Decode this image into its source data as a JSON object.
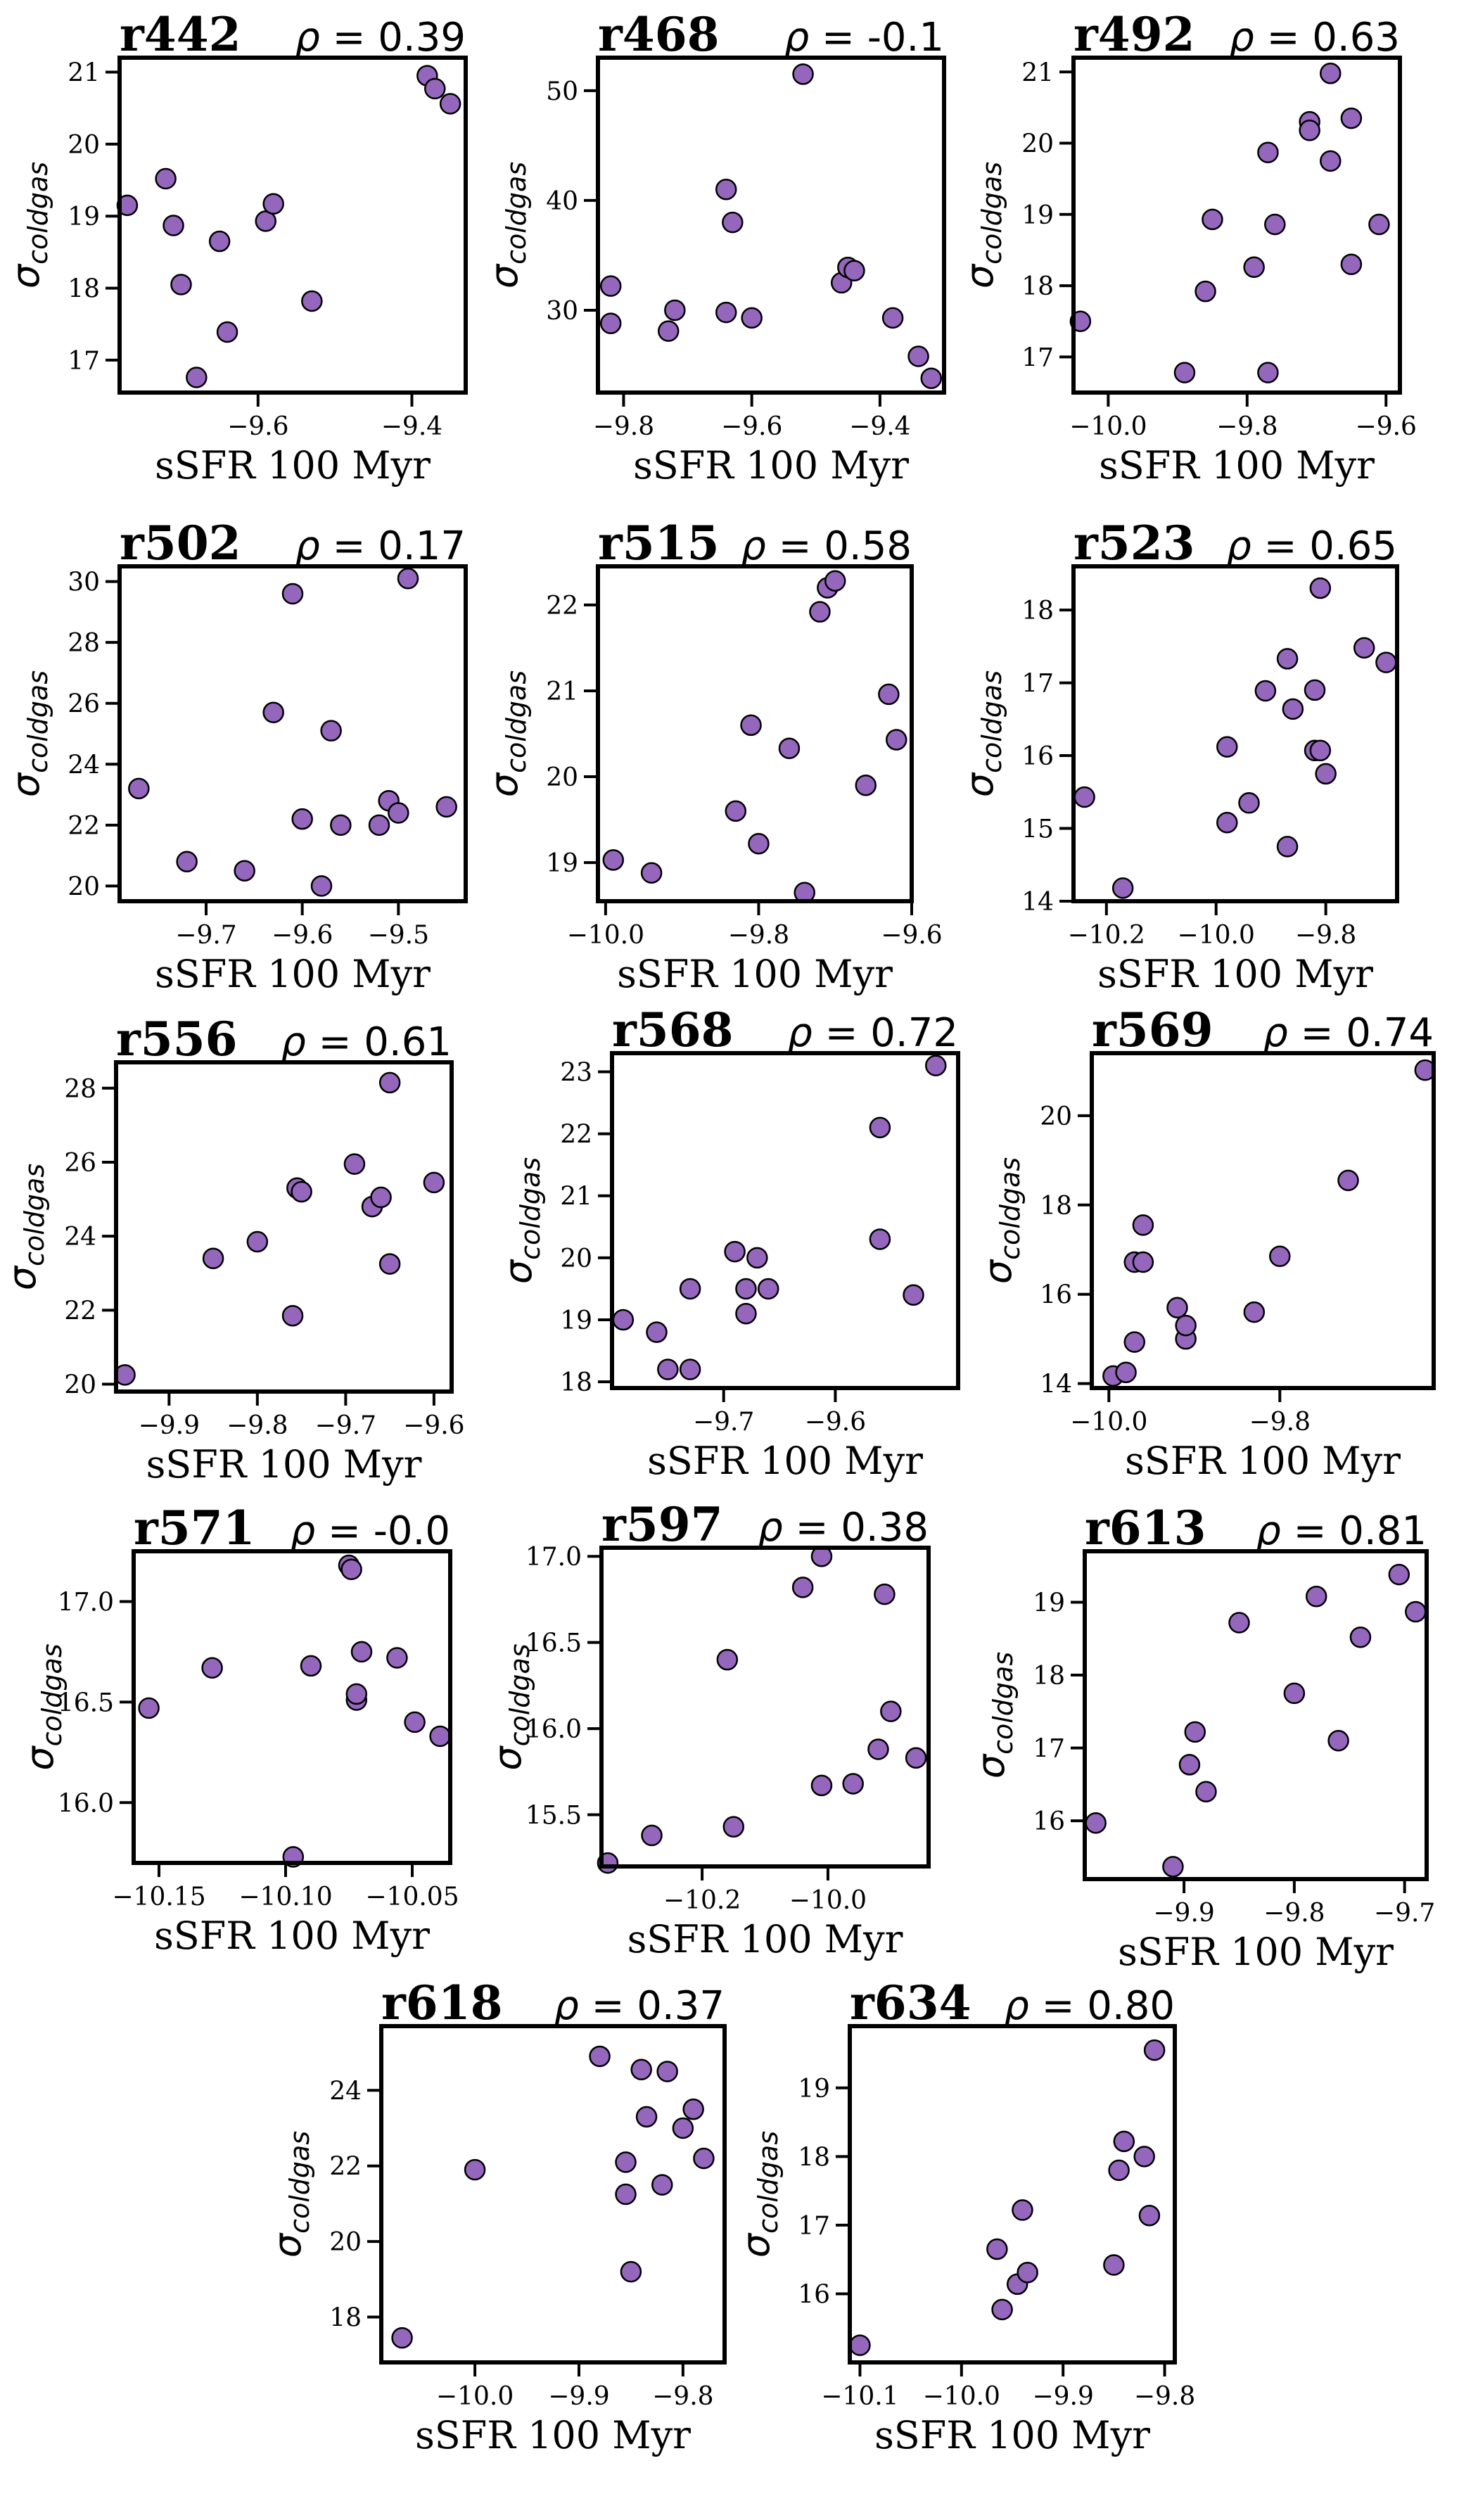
{
  "figure": {
    "marker_color": "#9467bd",
    "marker_edge": "#000000",
    "rho_symbol": "ρ",
    "x_label": "sSFR 100 Myr",
    "y_label_symbol": "σ",
    "y_label_subscript": "coldgas"
  },
  "chart_data": [
    {
      "type": "scatter",
      "id": "r442",
      "rho": "= 0.39",
      "xlabel": "sSFR 100 Myr",
      "ylabel": "σ_coldgas",
      "xlim": [
        -9.78,
        -9.33
      ],
      "ylim": [
        16.55,
        21.2
      ],
      "xticks": [
        -9.6,
        -9.4
      ],
      "yticks": [
        17,
        18,
        19,
        20,
        21
      ],
      "xprec": 1,
      "yprec": 0,
      "x": [
        -9.77,
        -9.72,
        -9.71,
        -9.7,
        -9.68,
        -9.65,
        -9.64,
        -9.59,
        -9.58,
        -9.53,
        -9.38,
        -9.37,
        -9.35
      ],
      "y": [
        19.15,
        19.52,
        18.87,
        18.05,
        16.76,
        18.65,
        17.39,
        18.93,
        19.17,
        17.82,
        20.95,
        20.77,
        20.56
      ]
    },
    {
      "type": "scatter",
      "id": "r468",
      "rho": "= -0.1",
      "xlabel": "sSFR 100 Myr",
      "ylabel": "σ_coldgas",
      "xlim": [
        -9.84,
        -9.3
      ],
      "ylim": [
        22.5,
        53
      ],
      "xticks": [
        -9.8,
        -9.6,
        -9.4
      ],
      "yticks": [
        30,
        40,
        50
      ],
      "xprec": 1,
      "yprec": 0,
      "x": [
        -9.82,
        -9.82,
        -9.73,
        -9.72,
        -9.64,
        -9.64,
        -9.63,
        -9.6,
        -9.52,
        -9.46,
        -9.45,
        -9.44,
        -9.38,
        -9.34,
        -9.32
      ],
      "y": [
        32.2,
        28.8,
        28.1,
        30.0,
        41.0,
        29.8,
        38.0,
        29.3,
        51.5,
        32.5,
        33.9,
        33.6,
        29.3,
        25.8,
        23.8
      ]
    },
    {
      "type": "scatter",
      "id": "r492",
      "rho": "= 0.63",
      "xlabel": "sSFR 100 Myr",
      "ylabel": "σ_coldgas",
      "xlim": [
        -10.05,
        -9.58
      ],
      "ylim": [
        16.5,
        21.2
      ],
      "xticks": [
        -10.0,
        -9.8,
        -9.6
      ],
      "yticks": [
        17,
        18,
        19,
        20,
        21
      ],
      "xprec": 1,
      "yprec": 0,
      "x": [
        -10.04,
        -9.89,
        -9.86,
        -9.85,
        -9.79,
        -9.77,
        -9.77,
        -9.76,
        -9.71,
        -9.71,
        -9.68,
        -9.68,
        -9.65,
        -9.65,
        -9.61
      ],
      "y": [
        17.5,
        16.78,
        17.92,
        18.93,
        18.26,
        16.78,
        19.87,
        18.86,
        20.3,
        20.18,
        20.98,
        19.75,
        20.35,
        18.3,
        18.86
      ]
    },
    {
      "type": "scatter",
      "id": "r502",
      "rho": "= 0.17",
      "xlabel": "sSFR 100 Myr",
      "ylabel": "σ_coldgas",
      "xlim": [
        -9.79,
        -9.43
      ],
      "ylim": [
        19.5,
        30.5
      ],
      "xticks": [
        -9.7,
        -9.6,
        -9.5
      ],
      "yticks": [
        20,
        22,
        24,
        26,
        28,
        30
      ],
      "xprec": 1,
      "yprec": 0,
      "x": [
        -9.77,
        -9.72,
        -9.66,
        -9.63,
        -9.61,
        -9.6,
        -9.58,
        -9.57,
        -9.56,
        -9.52,
        -9.51,
        -9.5,
        -9.49,
        -9.45
      ],
      "y": [
        23.2,
        20.8,
        20.5,
        25.7,
        29.6,
        22.2,
        20.0,
        25.1,
        22.0,
        22.0,
        22.8,
        22.4,
        30.1,
        22.6
      ]
    },
    {
      "type": "scatter",
      "id": "r515",
      "rho": "= 0.58",
      "xlabel": "sSFR 100 Myr",
      "ylabel": "σ_coldgas",
      "xlim": [
        -10.01,
        -9.6
      ],
      "ylim": [
        18.55,
        22.45
      ],
      "xticks": [
        -10.0,
        -9.8,
        -9.6
      ],
      "yticks": [
        19,
        20,
        21,
        22
      ],
      "xprec": 1,
      "yprec": 0,
      "x": [
        -9.99,
        -9.94,
        -9.83,
        -9.81,
        -9.8,
        -9.76,
        -9.74,
        -9.72,
        -9.71,
        -9.7,
        -9.66,
        -9.63,
        -9.62
      ],
      "y": [
        19.03,
        18.88,
        19.6,
        20.6,
        19.22,
        20.33,
        18.65,
        21.92,
        22.2,
        22.28,
        19.9,
        20.96,
        20.43
      ]
    },
    {
      "type": "scatter",
      "id": "r523",
      "rho": "= 0.65",
      "xlabel": "sSFR 100 Myr",
      "ylabel": "σ_coldgas",
      "xlim": [
        -10.26,
        -9.67
      ],
      "ylim": [
        14.0,
        18.6
      ],
      "xticks": [
        -10.2,
        -10.0,
        -9.8
      ],
      "yticks": [
        14,
        15,
        16,
        17,
        18
      ],
      "xprec": 1,
      "yprec": 0,
      "x": [
        -10.24,
        -10.17,
        -9.98,
        -9.98,
        -9.94,
        -9.91,
        -9.87,
        -9.87,
        -9.86,
        -9.82,
        -9.82,
        -9.81,
        -9.81,
        -9.8,
        -9.73,
        -9.69
      ],
      "y": [
        15.43,
        14.18,
        16.12,
        15.08,
        15.35,
        16.89,
        14.75,
        17.33,
        16.64,
        16.07,
        16.9,
        18.3,
        16.07,
        15.75,
        17.48,
        17.28
      ]
    },
    {
      "type": "scatter",
      "id": "r556",
      "rho": "= 0.61",
      "xlabel": "sSFR 100 Myr",
      "ylabel": "σ_coldgas",
      "xlim": [
        -9.96,
        -9.58
      ],
      "ylim": [
        19.8,
        28.7
      ],
      "xticks": [
        -9.9,
        -9.8,
        -9.7,
        -9.6
      ],
      "yticks": [
        20,
        22,
        24,
        26,
        28
      ],
      "xprec": 1,
      "yprec": 0,
      "x": [
        -9.95,
        -9.85,
        -9.8,
        -9.76,
        -9.755,
        -9.75,
        -9.69,
        -9.67,
        -9.66,
        -9.65,
        -9.65,
        -9.6
      ],
      "y": [
        20.25,
        23.4,
        23.85,
        21.85,
        25.3,
        25.2,
        25.95,
        24.8,
        25.05,
        23.25,
        28.15,
        25.45
      ]
    },
    {
      "type": "scatter",
      "id": "r568",
      "rho": "= 0.72",
      "xlabel": "sSFR 100 Myr",
      "ylabel": "σ_coldgas",
      "xlim": [
        -9.8,
        -9.49
      ],
      "ylim": [
        17.9,
        23.3
      ],
      "xticks": [
        -9.7,
        -9.6
      ],
      "yticks": [
        18,
        19,
        20,
        21,
        22,
        23
      ],
      "xprec": 1,
      "yprec": 0,
      "x": [
        -9.79,
        -9.76,
        -9.75,
        -9.73,
        -9.73,
        -9.69,
        -9.68,
        -9.68,
        -9.67,
        -9.66,
        -9.56,
        -9.56,
        -9.53,
        -9.51
      ],
      "y": [
        19.0,
        18.8,
        18.2,
        19.5,
        18.2,
        20.1,
        19.5,
        19.1,
        20.0,
        19.5,
        20.3,
        22.1,
        19.4,
        23.1
      ]
    },
    {
      "type": "scatter",
      "id": "r569",
      "rho": "= 0.74",
      "xlabel": "sSFR 100 Myr",
      "ylabel": "σ_coldgas",
      "xlim": [
        -10.02,
        -9.62
      ],
      "ylim": [
        13.9,
        21.4
      ],
      "xticks": [
        -10.0,
        -9.8
      ],
      "yticks": [
        14,
        16,
        18,
        20
      ],
      "xprec": 1,
      "yprec": 0,
      "x": [
        -9.995,
        -9.98,
        -9.97,
        -9.97,
        -9.96,
        -9.96,
        -9.92,
        -9.91,
        -9.91,
        -9.83,
        -9.8,
        -9.72,
        -9.63
      ],
      "y": [
        14.17,
        14.25,
        14.93,
        16.72,
        17.55,
        16.72,
        15.7,
        15.0,
        15.3,
        15.6,
        16.85,
        18.55,
        21.02
      ]
    },
    {
      "type": "scatter",
      "id": "r571",
      "rho": "= -0.0",
      "xlabel": "sSFR 100 Myr",
      "ylabel": "σ_coldgas",
      "xlim": [
        -10.16,
        -10.035
      ],
      "ylim": [
        15.7,
        17.25
      ],
      "xticks": [
        -10.15,
        -10.1,
        -10.05
      ],
      "yticks": [
        16.0,
        16.5,
        17.0
      ],
      "xprec": 2,
      "yprec": 1,
      "x": [
        -10.154,
        -10.129,
        -10.097,
        -10.09,
        -10.075,
        -10.074,
        -10.072,
        -10.072,
        -10.07,
        -10.056,
        -10.049,
        -10.039
      ],
      "y": [
        16.47,
        16.67,
        15.73,
        16.68,
        17.18,
        17.16,
        16.51,
        16.54,
        16.75,
        16.72,
        16.4,
        16.33
      ]
    },
    {
      "type": "scatter",
      "id": "r597",
      "rho": "= 0.38",
      "xlabel": "sSFR 100 Myr",
      "ylabel": "σ_coldgas",
      "xlim": [
        -10.36,
        -9.84
      ],
      "ylim": [
        15.2,
        17.05
      ],
      "xticks": [
        -10.2,
        -10.0
      ],
      "yticks": [
        15.5,
        16.0,
        16.5,
        17.0
      ],
      "xprec": 1,
      "yprec": 1,
      "x": [
        -10.35,
        -10.28,
        -10.16,
        -10.15,
        -10.04,
        -10.01,
        -10.01,
        -9.96,
        -9.92,
        -9.91,
        -9.9,
        -9.86
      ],
      "y": [
        15.22,
        15.38,
        16.4,
        15.43,
        16.82,
        17.0,
        15.67,
        15.68,
        15.88,
        16.78,
        16.1,
        15.83
      ]
    },
    {
      "type": "scatter",
      "id": "r613",
      "rho": "= 0.81",
      "xlabel": "sSFR 100 Myr",
      "ylabel": "σ_coldgas",
      "xlim": [
        -9.99,
        -9.68
      ],
      "ylim": [
        15.2,
        19.7
      ],
      "xticks": [
        -9.9,
        -9.8,
        -9.7
      ],
      "yticks": [
        16,
        17,
        18,
        19
      ],
      "xprec": 1,
      "yprec": 0,
      "x": [
        -9.98,
        -9.91,
        -9.895,
        -9.89,
        -9.88,
        -9.85,
        -9.8,
        -9.78,
        -9.76,
        -9.74,
        -9.705,
        -9.69
      ],
      "y": [
        15.97,
        15.37,
        16.77,
        17.22,
        16.4,
        18.72,
        17.75,
        19.08,
        17.1,
        18.52,
        19.38,
        18.87
      ]
    },
    {
      "type": "scatter",
      "id": "r618",
      "rho": "= 0.37",
      "xlabel": "sSFR 100 Myr",
      "ylabel": "σ_coldgas",
      "xlim": [
        -10.09,
        -9.76
      ],
      "ylim": [
        16.8,
        25.7
      ],
      "xticks": [
        -10.0,
        -9.9,
        -9.8
      ],
      "yticks": [
        18,
        20,
        22,
        24
      ],
      "xprec": 1,
      "yprec": 0,
      "x": [
        -10.07,
        -10.0,
        -9.88,
        -9.855,
        -9.855,
        -9.85,
        -9.84,
        -9.835,
        -9.82,
        -9.815,
        -9.8,
        -9.79,
        -9.78
      ],
      "y": [
        17.45,
        21.9,
        24.9,
        21.25,
        22.1,
        19.2,
        24.55,
        23.3,
        21.5,
        24.5,
        23.0,
        23.5,
        22.2
      ]
    },
    {
      "type": "scatter",
      "id": "r634",
      "rho": "= 0.80",
      "xlabel": "sSFR 100 Myr",
      "ylabel": "σ_coldgas",
      "xlim": [
        -10.11,
        -9.79
      ],
      "ylim": [
        15.0,
        19.9
      ],
      "xticks": [
        -10.1,
        -10.0,
        -9.9,
        -9.8
      ],
      "yticks": [
        16,
        17,
        18,
        19
      ],
      "xprec": 1,
      "yprec": 0,
      "x": [
        -10.1,
        -9.965,
        -9.96,
        -9.945,
        -9.94,
        -9.935,
        -9.85,
        -9.845,
        -9.84,
        -9.82,
        -9.815,
        -9.81
      ],
      "y": [
        15.25,
        16.65,
        15.77,
        16.14,
        17.22,
        16.31,
        16.42,
        17.8,
        18.22,
        18.0,
        17.14,
        19.55
      ]
    }
  ]
}
